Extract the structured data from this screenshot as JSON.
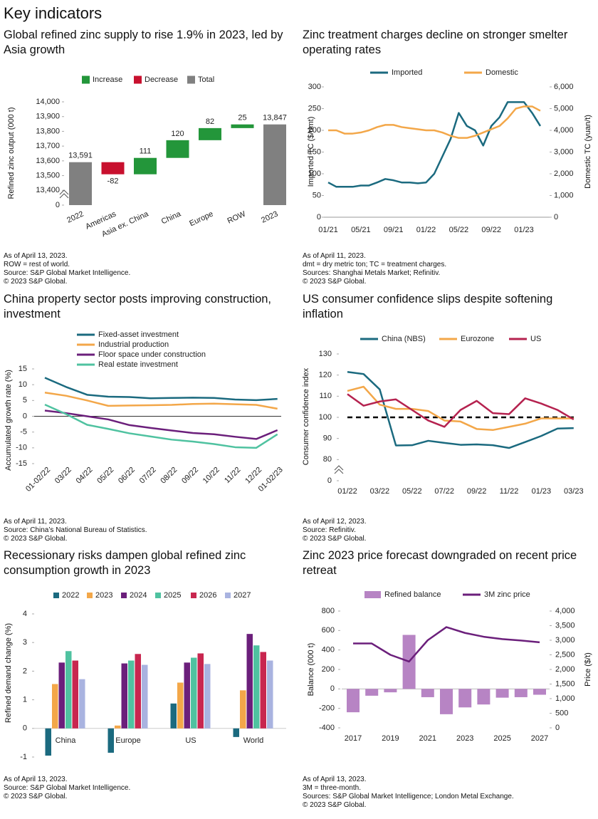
{
  "title": "Key indicators",
  "chart_data": [
    {
      "type": "waterfall",
      "title": "Global refined zinc supply to rise 1.9% in 2023, led by Asia growth",
      "y_label": "Refined zinc output (000 t)",
      "legend": [
        {
          "name": "Increase",
          "color": "#23963a"
        },
        {
          "name": "Decrease",
          "color": "#c8102e"
        },
        {
          "name": "Total",
          "color": "#808080"
        }
      ],
      "categories": [
        "2022",
        "Americas",
        "Asia ex. China",
        "China",
        "Europe",
        "ROW",
        "2023"
      ],
      "values": [
        13591,
        -82,
        111,
        120,
        82,
        25,
        13847
      ],
      "value_labels": [
        "13,591",
        "-82",
        "111",
        "120",
        "82",
        "25",
        "13,847"
      ],
      "total_indices": [
        0,
        6
      ],
      "ylim": [
        13300,
        14000
      ],
      "yticks": [
        0,
        {
          "value": 13400,
          "label": "13,400"
        },
        {
          "value": 13500,
          "label": "13,500"
        },
        {
          "value": 13600,
          "label": "13,600"
        },
        {
          "value": 13700,
          "label": "13,700"
        },
        {
          "value": 13800,
          "label": "13,800"
        },
        {
          "value": 13900,
          "label": "13,900"
        },
        {
          "value": 14000,
          "label": "14,000"
        }
      ],
      "axis_break": true,
      "notes": [
        "As of April 13, 2023.",
        "ROW = rest of world.",
        "Source: S&P Global Market Intelligence.",
        "© 2023 S&P Global."
      ]
    },
    {
      "type": "line",
      "title": "Zinc treatment charges decline on stronger smelter operating rates",
      "y_label": "Imported TC ($/dmt)",
      "y2_label": "Domestic TC (yuan/t)",
      "categories": [
        "01/21",
        null,
        null,
        null,
        "05/21",
        null,
        null,
        null,
        "09/21",
        null,
        null,
        null,
        "01/22",
        null,
        null,
        null,
        "05/22",
        null,
        null,
        null,
        "09/22",
        null,
        null,
        null,
        "01/23",
        null,
        null
      ],
      "series": [
        {
          "name": "Imported",
          "color": "#1b6a7f",
          "values": [
            80,
            70,
            70,
            70,
            73,
            73,
            80,
            88,
            85,
            80,
            80,
            78,
            80,
            100,
            140,
            180,
            240,
            210,
            200,
            165,
            210,
            230,
            265,
            265,
            265,
            240,
            210
          ]
        },
        {
          "name": "Domestic",
          "color": "#f3a749",
          "axis": "y2",
          "values": [
            4000,
            4000,
            3850,
            3850,
            3900,
            4000,
            4150,
            4250,
            4250,
            4150,
            4100,
            4050,
            4000,
            4000,
            3900,
            3750,
            3650,
            3650,
            3750,
            3900,
            4050,
            4200,
            4550,
            5000,
            5100,
            5100,
            4900
          ]
        }
      ],
      "ylim": [
        0,
        300
      ],
      "yticks": [
        0,
        50,
        100,
        150,
        200,
        250,
        300
      ],
      "y2lim": [
        0,
        6000
      ],
      "y2ticks": [
        0,
        {
          "value": 1000,
          "label": "1,000"
        },
        {
          "value": 2000,
          "label": "2,000"
        },
        {
          "value": 3000,
          "label": "3,000"
        },
        {
          "value": 4000,
          "label": "4,000"
        },
        {
          "value": 5000,
          "label": "5,000"
        },
        {
          "value": 6000,
          "label": "6,000"
        }
      ],
      "notes": [
        "As of April 11, 2023.",
        "dmt = dry metric ton; TC = treatment charges.",
        "Sources: Shanghai Metals Market; Refinitiv.",
        "© 2023 S&P Global."
      ]
    },
    {
      "type": "line",
      "title": "China property sector posts improving construction, investment",
      "y_label": "Accumulated growth rate (%)",
      "categories": [
        "01-02/22",
        "03/22",
        "04/22",
        "05/22",
        "06/22",
        "07/22",
        "08/22",
        "09/22",
        "10/22",
        "11/22",
        "12/22",
        "01-02/23"
      ],
      "series": [
        {
          "name": "Fixed-asset investment",
          "color": "#1b6a7f",
          "values": [
            12.2,
            9.3,
            6.8,
            6.2,
            6.1,
            5.7,
            5.8,
            5.9,
            5.8,
            5.3,
            5.1,
            5.5
          ]
        },
        {
          "name": "Industrial production",
          "color": "#f3a749",
          "values": [
            7.5,
            6.5,
            5.0,
            3.3,
            3.4,
            3.5,
            3.6,
            3.9,
            4.0,
            3.8,
            3.6,
            2.4
          ]
        },
        {
          "name": "Floor space under construction",
          "color": "#6b1f7b",
          "values": [
            1.8,
            1.0,
            0.0,
            -1.0,
            -2.8,
            -3.7,
            -4.5,
            -5.3,
            -5.7,
            -6.5,
            -7.2,
            -4.4
          ]
        },
        {
          "name": "Real estate investment",
          "color": "#4fc2a0",
          "values": [
            3.7,
            0.7,
            -2.7,
            -4.0,
            -5.4,
            -6.4,
            -7.4,
            -8.0,
            -8.8,
            -9.8,
            -10.0,
            -5.7
          ]
        }
      ],
      "ylim": [
        -15,
        15
      ],
      "yticks": [
        -15,
        -10,
        -5,
        0,
        5,
        10,
        15
      ],
      "notes": [
        "As of April 11, 2023.",
        "Source: China’s National Bureau of Statistics.",
        "© 2023 S&P Global."
      ]
    },
    {
      "type": "line",
      "title": "US consumer confidence slips despite softening inflation",
      "y_label": "Consumer confidence index",
      "categories": [
        "01/22",
        null,
        "03/22",
        null,
        "05/22",
        null,
        "07/22",
        null,
        "09/22",
        null,
        "11/22",
        null,
        "01/23",
        null,
        "03/23"
      ],
      "series": [
        {
          "name": "China (NBS)",
          "color": "#1b6a7f",
          "values": [
            121.5,
            120.5,
            113.2,
            86.7,
            86.8,
            88.9,
            87.9,
            87.0,
            87.2,
            86.8,
            85.5,
            88.3,
            91.2,
            94.7,
            94.9
          ]
        },
        {
          "name": "Eurozone",
          "color": "#f3a749",
          "values": [
            112.5,
            114.5,
            106,
            104,
            104,
            103,
            98.5,
            98,
            94.5,
            94,
            95.5,
            97,
            99.5,
            99.5,
            99.5
          ]
        },
        {
          "name": "US",
          "color": "#b5224f",
          "values": [
            111,
            105.5,
            107.5,
            108.5,
            103.5,
            98.5,
            95.5,
            103.5,
            107.8,
            102,
            101.5,
            109,
            106.5,
            103.5,
            99
          ]
        }
      ],
      "ylim": [
        70,
        130
      ],
      "yticks": [
        0,
        80,
        90,
        100,
        110,
        120,
        130
      ],
      "axis_break": true,
      "reference_line": 100,
      "notes": [
        "As of April 12, 2023.",
        "Source: Refinitiv.",
        "© 2023 S&P Global."
      ]
    },
    {
      "type": "bar",
      "title": "Recessionary risks dampen global refined zinc consumption growth in 2023",
      "y_label": "Refined demand change (%)",
      "categories": [
        "China",
        "Europe",
        "US",
        "World"
      ],
      "series": [
        {
          "name": "2022",
          "color": "#1b6a7f",
          "values": [
            -0.95,
            -0.85,
            0.87,
            -0.3
          ]
        },
        {
          "name": "2023",
          "color": "#f3a749",
          "values": [
            1.55,
            0.1,
            1.6,
            1.33
          ]
        },
        {
          "name": "2024",
          "color": "#6b1f7b",
          "values": [
            2.3,
            2.27,
            2.3,
            3.3
          ]
        },
        {
          "name": "2025",
          "color": "#4fc2a0",
          "values": [
            2.7,
            2.37,
            2.47,
            2.9
          ]
        },
        {
          "name": "2026",
          "color": "#c8264f",
          "values": [
            2.37,
            2.6,
            2.62,
            2.67
          ]
        },
        {
          "name": "2027",
          "color": "#a9b3e0",
          "values": [
            1.72,
            2.22,
            2.25,
            2.37
          ]
        }
      ],
      "ylim": [
        -1,
        4
      ],
      "yticks": [
        -1,
        0,
        1,
        2,
        3,
        4
      ],
      "notes": [
        "As of April 13, 2023.",
        "Source: S&P Global Market Intelligence.",
        "© 2023 S&P Global."
      ]
    },
    {
      "type": "combo",
      "title": "Zinc 2023 price forecast  downgraded on recent price retreat",
      "y_label": "Balance (000 t)",
      "y2_label": "Price ($/t)",
      "categories": [
        "2017",
        null,
        "2019",
        null,
        "2021",
        null,
        "2023",
        null,
        "2025",
        null,
        "2027"
      ],
      "series": [
        {
          "name": "Refined balance",
          "color": "#b784c4",
          "type": "bar",
          "values": [
            -240,
            -70,
            -35,
            555,
            -85,
            -260,
            -190,
            -160,
            -90,
            -85,
            -60
          ]
        },
        {
          "name": "3M zinc price",
          "color": "#6b1f7b",
          "type": "line",
          "axis": "y2",
          "values": [
            2890,
            2890,
            2500,
            2270,
            3000,
            3450,
            3250,
            3120,
            3040,
            2990,
            2930
          ]
        }
      ],
      "ylim": [
        -400,
        800
      ],
      "yticks": [
        -400,
        -200,
        0,
        200,
        400,
        600,
        800
      ],
      "y2lim": [
        0,
        4000
      ],
      "y2ticks": [
        0,
        500,
        {
          "value": 1000,
          "label": "1,000"
        },
        {
          "value": 1500,
          "label": "1,500"
        },
        {
          "value": 2000,
          "label": "2,000"
        },
        {
          "value": 2500,
          "label": "2,500"
        },
        {
          "value": 3000,
          "label": "3,000"
        },
        {
          "value": 3500,
          "label": "3,500"
        },
        {
          "value": 4000,
          "label": "4,000"
        }
      ],
      "notes": [
        "As of April 13, 2023.",
        "3M = three-month.",
        "Sources: S&P Global Market Intelligence; London Metal Exchange.",
        "© 2023 S&P Global."
      ]
    }
  ]
}
